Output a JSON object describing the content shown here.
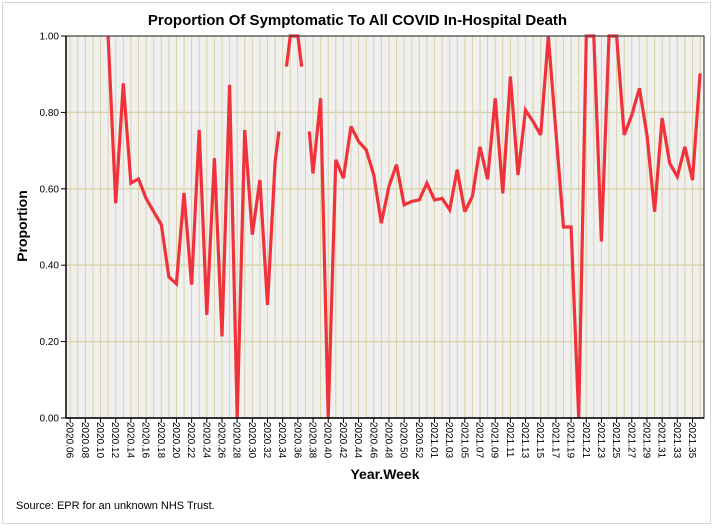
{
  "chart_data": {
    "type": "line",
    "title": "Proportion Of Symptomatic To All COVID In-Hospital Death",
    "xlabel": "Year.Week",
    "ylabel": "Proportion",
    "ylim": [
      0,
      1
    ],
    "yticks": [
      "0.00",
      "0.20",
      "0.40",
      "0.60",
      "0.80",
      "1.00"
    ],
    "ytick_values": [
      0,
      0.2,
      0.4,
      0.6,
      0.8,
      1.0
    ],
    "week_count": 84,
    "xtick_labels": [
      "2020.06",
      "2020.08",
      "2020.10",
      "2020.12",
      "2020.14",
      "2020.16",
      "2020.18",
      "2020.20",
      "2020.22",
      "2020.24",
      "2020.26",
      "2020.28",
      "2020.30",
      "2020.32",
      "2020.34",
      "2020.36",
      "2020.38",
      "2020.40",
      "2020.42",
      "2020.44",
      "2020.46",
      "2020.48",
      "2020.50",
      "2020.52",
      "2021.01",
      "2021.03",
      "2021.05",
      "2021.07",
      "2021.09",
      "2021.11",
      "2021.13",
      "2021.15",
      "2021.17",
      "2021.19",
      "2021.21",
      "2021.23",
      "2021.25",
      "2021.27",
      "2021.29",
      "2021.31",
      "2021.33",
      "2021.35"
    ],
    "xtick_positions": [
      0,
      2,
      4,
      6,
      8,
      10,
      12,
      14,
      16,
      18,
      20,
      22,
      24,
      26,
      28,
      30,
      32,
      34,
      36,
      38,
      40,
      42,
      44,
      46,
      48,
      50,
      52,
      54,
      56,
      58,
      60,
      62,
      64,
      66,
      68,
      70,
      72,
      74,
      76,
      78,
      80,
      82
    ],
    "grid": true,
    "series": [
      {
        "name": "Proportion",
        "color": "#f0323a",
        "segments": [
          [
            [
              5,
              1.0
            ],
            [
              6,
              0.562
            ],
            [
              7,
              0.876
            ],
            [
              8,
              0.615
            ],
            [
              9,
              0.626
            ],
            [
              10,
              0.575
            ],
            [
              11,
              0.54
            ],
            [
              12,
              0.506
            ],
            [
              13,
              0.369
            ],
            [
              14,
              0.351
            ],
            [
              15,
              0.589
            ],
            [
              16,
              0.349
            ],
            [
              17,
              0.754
            ],
            [
              18,
              0.27
            ],
            [
              19,
              0.68
            ],
            [
              20,
              0.214
            ],
            [
              21,
              0.872
            ],
            [
              22,
              0
            ],
            [
              23,
              0.754
            ],
            [
              24,
              0.48
            ],
            [
              25,
              0.623
            ],
            [
              26,
              0.296
            ],
            [
              27,
              0.67
            ],
            [
              27.5,
              0.75
            ]
          ],
          [
            [
              28.5,
              0.92
            ],
            [
              29,
              1.0
            ],
            [
              30,
              1.0
            ],
            [
              30.5,
              0.92
            ]
          ],
          [
            [
              31.5,
              0.75
            ],
            [
              32,
              0.64
            ],
            [
              33,
              0.837
            ],
            [
              34,
              0
            ],
            [
              35,
              0.676
            ],
            [
              36,
              0.628
            ],
            [
              37,
              0.763
            ],
            [
              38,
              0.724
            ],
            [
              39,
              0.702
            ],
            [
              40,
              0.636
            ],
            [
              41,
              0.51
            ],
            [
              42,
              0.606
            ],
            [
              43,
              0.663
            ],
            [
              44,
              0.558
            ],
            [
              45,
              0.567
            ],
            [
              46,
              0.571
            ],
            [
              47,
              0.615
            ],
            [
              48,
              0.571
            ],
            [
              49,
              0.575
            ],
            [
              50,
              0.545
            ],
            [
              51,
              0.65
            ],
            [
              52,
              0.54
            ],
            [
              53,
              0.58
            ],
            [
              54,
              0.71
            ],
            [
              55,
              0.625
            ],
            [
              56,
              0.837
            ],
            [
              57,
              0.588
            ],
            [
              58,
              0.894
            ],
            [
              59,
              0.636
            ],
            [
              60,
              0.806
            ],
            [
              61,
              0.776
            ],
            [
              62,
              0.741
            ],
            [
              63,
              1.0
            ],
            [
              64,
              0.75
            ],
            [
              65,
              0.5
            ],
            [
              66,
              0.5
            ],
            [
              67,
              0
            ],
            [
              68,
              1.0
            ],
            [
              69,
              1.0
            ],
            [
              70,
              0.462
            ],
            [
              71,
              1.0
            ],
            [
              72,
              1.0
            ],
            [
              73,
              0.741
            ],
            [
              74,
              0.793
            ],
            [
              75,
              0.863
            ],
            [
              76,
              0.74
            ],
            [
              77,
              0.54
            ],
            [
              78,
              0.785
            ],
            [
              79,
              0.667
            ],
            [
              80,
              0.632
            ],
            [
              81,
              0.71
            ],
            [
              82,
              0.623
            ],
            [
              83,
              0.902
            ]
          ]
        ]
      }
    ],
    "colors": {
      "plot_bg": "#f0f0f0",
      "grid": "#d9d2a6",
      "axis": "#000000"
    }
  },
  "source_note": "Source: EPR for an unknown NHS Trust."
}
